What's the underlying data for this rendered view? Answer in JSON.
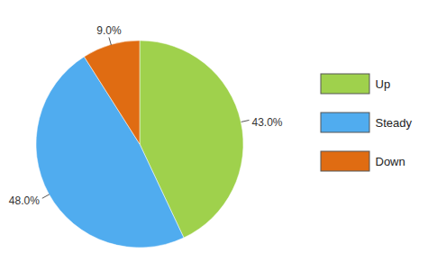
{
  "chart_data": {
    "type": "pie",
    "categories": [
      "Up",
      "Steady",
      "Down"
    ],
    "values": [
      43,
      48,
      9
    ],
    "value_labels": [
      "43.0%",
      "48.0%",
      "9.0%"
    ],
    "colors": [
      "#9fd14c",
      "#50acef",
      "#e06c12"
    ],
    "data_labels": true,
    "legend": "right"
  }
}
